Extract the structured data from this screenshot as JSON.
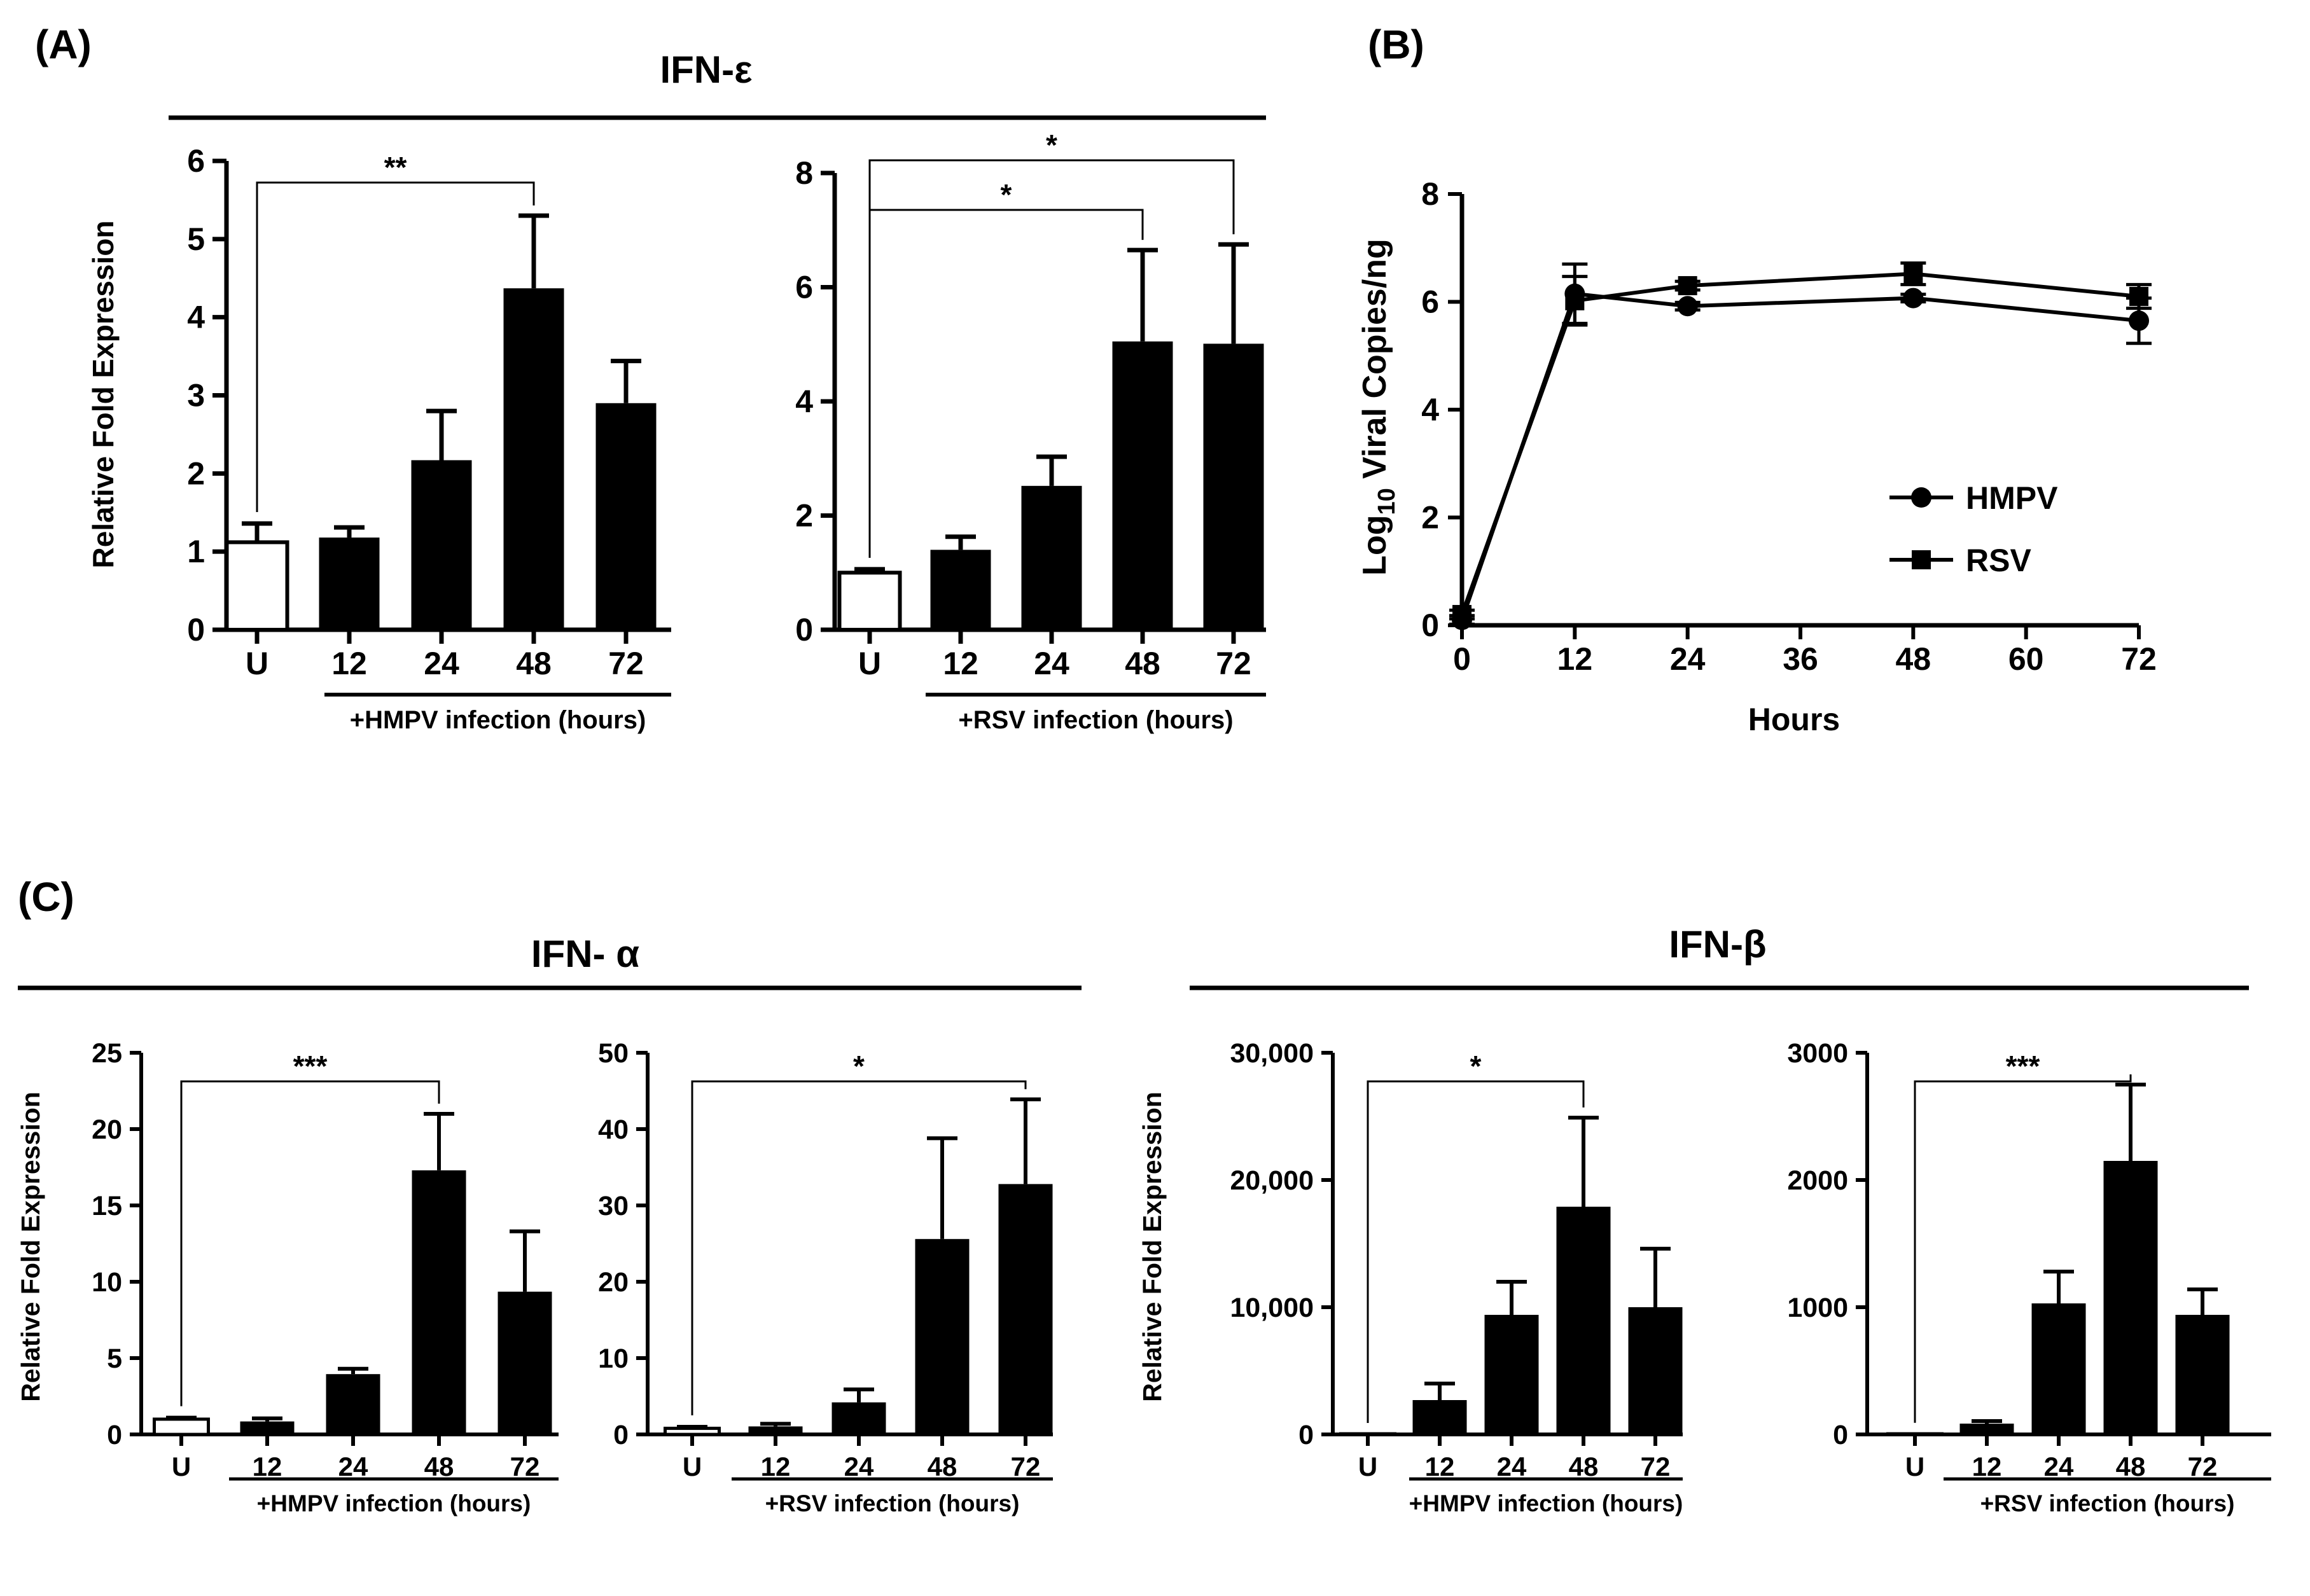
{
  "panel_labels": {
    "a": "(A)",
    "b": "(B)",
    "c": "(C)"
  },
  "group_titles": {
    "a": "IFN-ε",
    "c_alpha": "IFN- α",
    "c_beta": "IFN-β"
  },
  "colors": {
    "bar_infected": "#000000",
    "bar_control": "#ffffff",
    "axis": "#000000"
  },
  "chart_data": [
    {
      "id": "a1",
      "type": "bar",
      "title": "IFN-ε",
      "categories": [
        "U",
        "12",
        "24",
        "48",
        "72"
      ],
      "values": [
        1.12,
        1.18,
        2.17,
        4.37,
        2.9
      ],
      "errors": [
        0.24,
        0.13,
        0.63,
        0.93,
        0.54
      ],
      "ylim": [
        0,
        6
      ],
      "yticks": [
        "0",
        "1",
        "2",
        "3",
        "4",
        "5",
        "6"
      ],
      "ylabel": "Relative Fold Expression",
      "xlabel": "+HMPV infection (hours)",
      "significance": [
        {
          "from": "U",
          "to": "48",
          "label": "**"
        }
      ]
    },
    {
      "id": "a2",
      "type": "bar",
      "title": "IFN-ε",
      "categories": [
        "U",
        "12",
        "24",
        "48",
        "72"
      ],
      "values": [
        1.0,
        1.4,
        2.52,
        5.05,
        5.01
      ],
      "errors": [
        0.06,
        0.23,
        0.51,
        1.6,
        1.74
      ],
      "ylim": [
        0,
        8
      ],
      "yticks": [
        "0",
        "2",
        "4",
        "6",
        "8"
      ],
      "ylabel": "",
      "xlabel": "+RSV infection (hours)",
      "significance": [
        {
          "from": "U",
          "to": "48",
          "label": "*"
        },
        {
          "from": "U",
          "to": "72",
          "label": "*"
        }
      ]
    },
    {
      "id": "b",
      "type": "line",
      "xlabel": "Hours",
      "ylabel_main": "Log",
      "ylabel_sub": "10",
      "ylabel_rest": " Viral Copies/ng",
      "xlim": [
        0,
        72
      ],
      "ylim": [
        0,
        8
      ],
      "xticks": [
        "0",
        "12",
        "24",
        "36",
        "48",
        "60",
        "72"
      ],
      "yticks": [
        "0",
        "2",
        "4",
        "6",
        "8"
      ],
      "x": [
        0,
        12,
        24,
        48,
        72
      ],
      "series": [
        {
          "name": "HMPV",
          "marker": "circle",
          "values": [
            0.1,
            6.15,
            5.92,
            6.07,
            5.65
          ],
          "errors": [
            0.08,
            0.55,
            0.07,
            0.07,
            0.42
          ]
        },
        {
          "name": "RSV",
          "marker": "square",
          "values": [
            0.2,
            6.02,
            6.3,
            6.52,
            6.1
          ],
          "errors": [
            0.08,
            0.45,
            0.08,
            0.2,
            0.22
          ]
        }
      ],
      "legend": [
        "HMPV",
        "RSV"
      ]
    },
    {
      "id": "c1",
      "type": "bar",
      "title": "IFN- α",
      "categories": [
        "U",
        "12",
        "24",
        "48",
        "72"
      ],
      "values": [
        1.0,
        0.85,
        3.95,
        17.3,
        9.35
      ],
      "errors": [
        0.1,
        0.2,
        0.35,
        3.7,
        3.95
      ],
      "ylim": [
        0,
        25
      ],
      "yticks": [
        "0",
        "5",
        "10",
        "15",
        "20",
        "25"
      ],
      "ylabel": "Relative Fold Expression",
      "xlabel": "+HMPV infection (hours)",
      "significance": [
        {
          "from": "U",
          "to": "48",
          "label": "***"
        }
      ]
    },
    {
      "id": "c2",
      "type": "bar",
      "title": "IFN- α",
      "categories": [
        "U",
        "12",
        "24",
        "48",
        "72"
      ],
      "values": [
        0.8,
        1.05,
        4.2,
        25.6,
        32.8
      ],
      "errors": [
        0.2,
        0.35,
        1.7,
        13.2,
        11.1
      ],
      "ylim": [
        0,
        50
      ],
      "yticks": [
        "0",
        "10",
        "20",
        "30",
        "40",
        "50"
      ],
      "ylabel": "",
      "xlabel": "+RSV infection (hours)",
      "significance": [
        {
          "from": "U",
          "to": "72",
          "label": "*"
        }
      ]
    },
    {
      "id": "c3",
      "type": "bar",
      "title": "IFN-β",
      "categories": [
        "U",
        "12",
        "24",
        "48",
        "72"
      ],
      "values": [
        1,
        2700,
        9400,
        17900,
        10000
      ],
      "errors": [
        0,
        1300,
        2600,
        7000,
        4600
      ],
      "ylim": [
        0,
        30000
      ],
      "yticks": [
        "0",
        "10,000",
        "20,000",
        "30,000"
      ],
      "ylabel": "Relative Fold Expression",
      "xlabel": "+HMPV infection (hours)",
      "significance": [
        {
          "from": "U",
          "to": "48",
          "label": "*"
        }
      ]
    },
    {
      "id": "c4",
      "type": "bar",
      "title": "IFN-β",
      "categories": [
        "U",
        "12",
        "24",
        "48",
        "72"
      ],
      "values": [
        1,
        85,
        1030,
        2150,
        940
      ],
      "errors": [
        0,
        20,
        250,
        600,
        200
      ],
      "ylim": [
        0,
        3000
      ],
      "yticks": [
        "0",
        "1000",
        "2000",
        "3000"
      ],
      "ylabel": "",
      "xlabel": "+RSV infection (hours)",
      "significance": [
        {
          "from": "U",
          "to": "48",
          "label": "***"
        }
      ]
    }
  ]
}
